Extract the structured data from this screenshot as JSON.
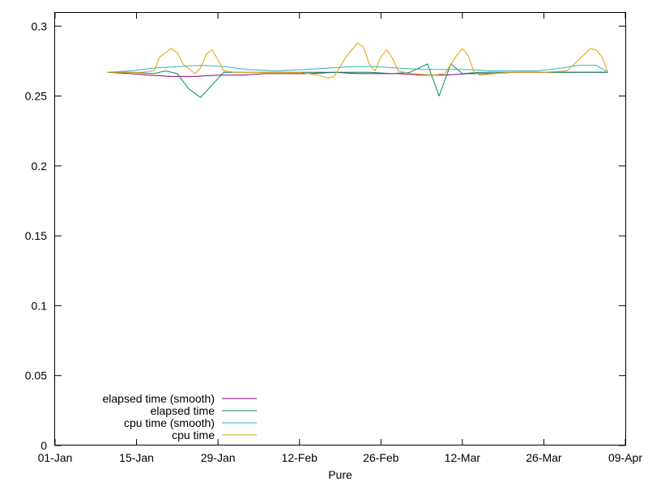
{
  "chart_data": {
    "type": "line",
    "xlabel": "Pure",
    "ylabel": "",
    "title": "",
    "x_ticks": [
      "01-Jan",
      "15-Jan",
      "29-Jan",
      "12-Feb",
      "26-Feb",
      "12-Mar",
      "26-Mar",
      "09-Apr"
    ],
    "xlim": [
      "01-Jan",
      "09-Apr"
    ],
    "y_ticks": [
      "0",
      "0.05",
      "0.1",
      "0.15",
      "0.2",
      "0.25",
      "0.3"
    ],
    "ylim": [
      0,
      0.31
    ],
    "grid": false,
    "legend_position": "bottom-left",
    "series": [
      {
        "name": "elapsed time (smooth)",
        "color": "#8b008b",
        "points": [
          [
            "10-Jan",
            0.267
          ],
          [
            "14-Jan",
            0.266
          ],
          [
            "17-Jan",
            0.265
          ],
          [
            "21-Jan",
            0.264
          ],
          [
            "25-Jan",
            0.264
          ],
          [
            "29-Jan",
            0.265
          ],
          [
            "02-Feb",
            0.265
          ],
          [
            "06-Feb",
            0.266
          ],
          [
            "10-Feb",
            0.266
          ],
          [
            "14-Feb",
            0.266
          ],
          [
            "18-Feb",
            0.267
          ],
          [
            "22-Feb",
            0.266
          ],
          [
            "26-Feb",
            0.266
          ],
          [
            "01-Mar",
            0.266
          ],
          [
            "05-Mar",
            0.265
          ],
          [
            "09-Mar",
            0.265
          ],
          [
            "13-Mar",
            0.266
          ],
          [
            "17-Mar",
            0.266
          ],
          [
            "21-Mar",
            0.267
          ],
          [
            "25-Mar",
            0.267
          ],
          [
            "29-Mar",
            0.267
          ],
          [
            "02-Apr",
            0.267
          ],
          [
            "06-Apr",
            0.267
          ]
        ]
      },
      {
        "name": "elapsed time",
        "color": "#008b5f",
        "points": [
          [
            "10-Jan",
            0.267
          ],
          [
            "14-Jan",
            0.267
          ],
          [
            "18-Jan",
            0.266
          ],
          [
            "20-Jan",
            0.268
          ],
          [
            "22-Jan",
            0.266
          ],
          [
            "24-Jan",
            0.255
          ],
          [
            "26-Jan",
            0.249
          ],
          [
            "28-Jan",
            0.258
          ],
          [
            "30-Jan",
            0.267
          ],
          [
            "02-Feb",
            0.267
          ],
          [
            "08-Feb",
            0.267
          ],
          [
            "14-Feb",
            0.267
          ],
          [
            "20-Feb",
            0.267
          ],
          [
            "24-Feb",
            0.267
          ],
          [
            "28-Feb",
            0.266
          ],
          [
            "03-Mar",
            0.267
          ],
          [
            "06-Mar",
            0.273
          ],
          [
            "08-Mar",
            0.25
          ],
          [
            "10-Mar",
            0.273
          ],
          [
            "12-Mar",
            0.266
          ],
          [
            "15-Mar",
            0.267
          ],
          [
            "20-Mar",
            0.267
          ],
          [
            "26-Mar",
            0.267
          ],
          [
            "01-Apr",
            0.267
          ],
          [
            "06-Apr",
            0.267
          ]
        ]
      },
      {
        "name": "cpu time (smooth)",
        "color": "#38b0c0",
        "points": [
          [
            "10-Jan",
            0.267
          ],
          [
            "14-Jan",
            0.268
          ],
          [
            "18-Jan",
            0.27
          ],
          [
            "22-Jan",
            0.271
          ],
          [
            "26-Jan",
            0.272
          ],
          [
            "30-Jan",
            0.271
          ],
          [
            "03-Feb",
            0.269
          ],
          [
            "08-Feb",
            0.268
          ],
          [
            "13-Feb",
            0.269
          ],
          [
            "17-Feb",
            0.27
          ],
          [
            "21-Feb",
            0.271
          ],
          [
            "25-Feb",
            0.271
          ],
          [
            "01-Mar",
            0.27
          ],
          [
            "05-Mar",
            0.269
          ],
          [
            "09-Mar",
            0.269
          ],
          [
            "13-Mar",
            0.269
          ],
          [
            "17-Mar",
            0.268
          ],
          [
            "21-Mar",
            0.268
          ],
          [
            "25-Mar",
            0.268
          ],
          [
            "29-Mar",
            0.27
          ],
          [
            "01-Apr",
            0.272
          ],
          [
            "04-Apr",
            0.272
          ],
          [
            "06-Apr",
            0.267
          ]
        ]
      },
      {
        "name": "cpu time",
        "color": "#e6a000",
        "points": [
          [
            "10-Jan",
            0.267
          ],
          [
            "16-Jan",
            0.267
          ],
          [
            "18-Jan",
            0.268
          ],
          [
            "19-Jan",
            0.278
          ],
          [
            "21-Jan",
            0.284
          ],
          [
            "22-Jan",
            0.281
          ],
          [
            "23-Jan",
            0.273
          ],
          [
            "25-Jan",
            0.266
          ],
          [
            "26-Jan",
            0.27
          ],
          [
            "27-Jan",
            0.28
          ],
          [
            "28-Jan",
            0.283
          ],
          [
            "29-Jan",
            0.276
          ],
          [
            "30-Jan",
            0.268
          ],
          [
            "01-Feb",
            0.267
          ],
          [
            "07-Feb",
            0.267
          ],
          [
            "12-Feb",
            0.267
          ],
          [
            "15-Feb",
            0.265
          ],
          [
            "17-Feb",
            0.263
          ],
          [
            "18-Feb",
            0.264
          ],
          [
            "20-Feb",
            0.278
          ],
          [
            "22-Feb",
            0.288
          ],
          [
            "23-Feb",
            0.285
          ],
          [
            "24-Feb",
            0.273
          ],
          [
            "25-Feb",
            0.268
          ],
          [
            "26-Feb",
            0.278
          ],
          [
            "27-Feb",
            0.283
          ],
          [
            "28-Feb",
            0.277
          ],
          [
            "01-Mar",
            0.268
          ],
          [
            "03-Mar",
            0.266
          ],
          [
            "07-Mar",
            0.265
          ],
          [
            "09-Mar",
            0.266
          ],
          [
            "11-Mar",
            0.279
          ],
          [
            "12-Mar",
            0.284
          ],
          [
            "13-Mar",
            0.279
          ],
          [
            "14-Mar",
            0.267
          ],
          [
            "15-Mar",
            0.265
          ],
          [
            "20-Mar",
            0.267
          ],
          [
            "26-Mar",
            0.267
          ],
          [
            "30-Mar",
            0.268
          ],
          [
            "01-Apr",
            0.276
          ],
          [
            "03-Apr",
            0.284
          ],
          [
            "04-Apr",
            0.283
          ],
          [
            "05-Apr",
            0.278
          ],
          [
            "06-Apr",
            0.267
          ]
        ]
      }
    ]
  }
}
